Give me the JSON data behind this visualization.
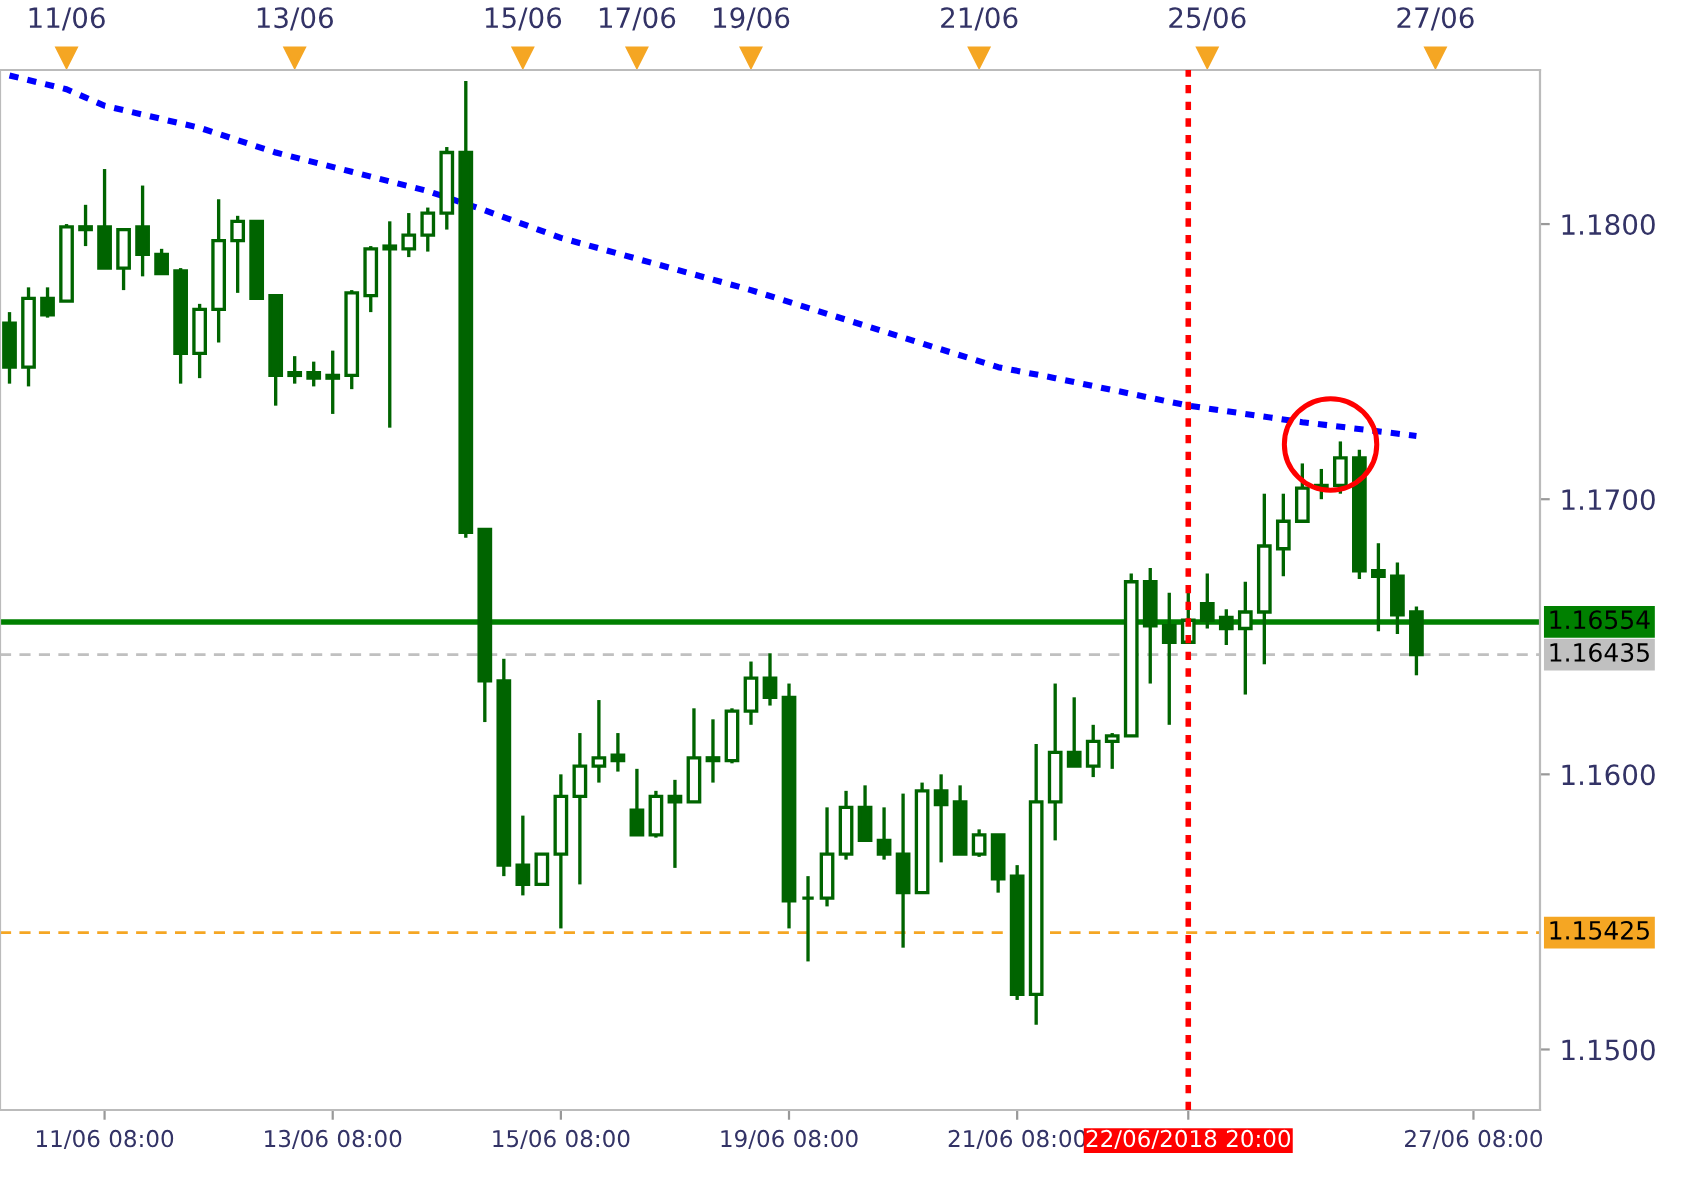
{
  "chart_data": {
    "type": "candlestick",
    "color": "#006400",
    "categories": [
      null,
      null,
      null,
      null,
      null,
      "11/06 08:00",
      null,
      null,
      null,
      null,
      null,
      null,
      null,
      null,
      null,
      null,
      null,
      "13/06 08:00",
      null,
      null,
      null,
      null,
      null,
      null,
      null,
      null,
      null,
      null,
      null,
      "15/06 08:00",
      null,
      null,
      null,
      null,
      null,
      null,
      null,
      null,
      null,
      null,
      null,
      "19/06 08:00",
      null,
      null,
      null,
      null,
      null,
      null,
      null,
      null,
      null,
      null,
      null,
      "21/06 08:00",
      null,
      null,
      null,
      null,
      null,
      null,
      null,
      null,
      "22/06/2018 20:00",
      null,
      null,
      null,
      null,
      null,
      null,
      null,
      null,
      null,
      null,
      null,
      null,
      null,
      null,
      "27/06 08:00",
      null,
      null,
      null
    ],
    "annotations": [
      "11/06",
      "13/06",
      "15/06",
      "17/06",
      "19/06",
      "21/06",
      "25/06",
      "27/06"
    ],
    "ohlc": [
      [
        1.1764,
        1.1768,
        1.1742,
        1.1748
      ],
      [
        1.1748,
        1.1777,
        1.1741,
        1.1773
      ],
      [
        1.1773,
        1.1777,
        1.1766,
        1.1767
      ],
      [
        1.1772,
        1.18,
        1.1772,
        1.1799
      ],
      [
        1.1799,
        1.1807,
        1.1792,
        1.1798
      ],
      [
        1.1799,
        1.182,
        1.1784,
        1.1784
      ],
      [
        1.1784,
        1.1798,
        1.1776,
        1.1798
      ],
      [
        1.1799,
        1.1814,
        1.1781,
        1.1789
      ],
      [
        1.1789,
        1.1791,
        1.1782,
        1.1782
      ],
      [
        1.1783,
        1.1784,
        1.1742,
        1.1753
      ],
      [
        1.1753,
        1.1771,
        1.1744,
        1.1769
      ],
      [
        1.1769,
        1.1809,
        1.1757,
        1.1794
      ],
      [
        1.1794,
        1.1803,
        1.1775,
        1.1801
      ],
      [
        1.1801,
        1.1801,
        1.1773,
        1.1773
      ],
      [
        1.1774,
        1.1774,
        1.1734,
        1.1745
      ],
      [
        1.1746,
        1.1752,
        1.1742,
        1.1745
      ],
      [
        1.1746,
        1.175,
        1.1741,
        1.1744
      ],
      [
        1.1745,
        1.1754,
        1.1731,
        1.1744
      ],
      [
        1.1745,
        1.1776,
        1.174,
        1.1775
      ],
      [
        1.1774,
        1.1792,
        1.1768,
        1.1791
      ],
      [
        1.1792,
        1.1801,
        1.1726,
        1.1791
      ],
      [
        1.1791,
        1.1804,
        1.1788,
        1.1796
      ],
      [
        1.1796,
        1.1806,
        1.179,
        1.1804
      ],
      [
        1.1804,
        1.1828,
        1.1798,
        1.1826
      ],
      [
        1.1826,
        1.1852,
        1.1686,
        1.1688
      ],
      [
        1.1689,
        1.1689,
        1.1619,
        1.1634
      ],
      [
        1.1634,
        1.1642,
        1.1563,
        1.1567
      ],
      [
        1.1567,
        1.1585,
        1.1556,
        1.156
      ],
      [
        1.156,
        1.1571,
        1.156,
        1.1571
      ],
      [
        1.1571,
        1.16,
        1.1544,
        1.1592
      ],
      [
        1.1592,
        1.1615,
        1.156,
        1.1603
      ],
      [
        1.1603,
        1.1627,
        1.1597,
        1.1606
      ],
      [
        1.1607,
        1.1615,
        1.1601,
        1.1605
      ],
      [
        1.1587,
        1.1602,
        1.1578,
        1.1578
      ],
      [
        1.1578,
        1.1594,
        1.1577,
        1.1592
      ],
      [
        1.1592,
        1.1598,
        1.1566,
        1.159
      ],
      [
        1.159,
        1.1624,
        1.159,
        1.1606
      ],
      [
        1.1606,
        1.162,
        1.1597,
        1.1605
      ],
      [
        1.1605,
        1.1624,
        1.1604,
        1.1623
      ],
      [
        1.1623,
        1.1641,
        1.1618,
        1.1635
      ],
      [
        1.1635,
        1.1644,
        1.1625,
        1.1628
      ],
      [
        1.1628,
        1.1633,
        1.1544,
        1.1554
      ],
      [
        1.1555,
        1.1563,
        1.1532,
        1.1555
      ],
      [
        1.1555,
        1.1588,
        1.1552,
        1.1571
      ],
      [
        1.1571,
        1.1594,
        1.1569,
        1.1588
      ],
      [
        1.1588,
        1.1596,
        1.1576,
        1.1576
      ],
      [
        1.1576,
        1.1588,
        1.1569,
        1.1571
      ],
      [
        1.1571,
        1.1593,
        1.1537,
        1.1557
      ],
      [
        1.1557,
        1.1597,
        1.1557,
        1.1594
      ],
      [
        1.1594,
        1.16,
        1.1568,
        1.1589
      ],
      [
        1.159,
        1.1596,
        1.1571,
        1.1571
      ],
      [
        1.1571,
        1.158,
        1.157,
        1.1578
      ],
      [
        1.1578,
        1.1578,
        1.1557,
        1.1562
      ],
      [
        1.1563,
        1.1567,
        1.1518,
        1.152
      ],
      [
        1.152,
        1.1611,
        1.1509,
        1.159
      ],
      [
        1.159,
        1.1633,
        1.1576,
        1.1608
      ],
      [
        1.1608,
        1.1628,
        1.1603,
        1.1603
      ],
      [
        1.1603,
        1.1618,
        1.1599,
        1.1612
      ],
      [
        1.1612,
        1.1615,
        1.1602,
        1.1614
      ],
      [
        1.1614,
        1.1673,
        1.1614,
        1.167
      ],
      [
        1.167,
        1.1675,
        1.1633,
        1.1654
      ],
      [
        1.1654,
        1.1666,
        1.1618,
        1.1648
      ],
      [
        1.1648,
        1.1667,
        1.1648,
        1.1656
      ],
      [
        1.1662,
        1.1673,
        1.1653,
        1.1656
      ],
      [
        1.1657,
        1.166,
        1.1647,
        1.1653
      ],
      [
        1.1653,
        1.167,
        1.1629,
        1.1659
      ],
      [
        1.1659,
        1.1702,
        1.164,
        1.1683
      ],
      [
        1.1682,
        1.1702,
        1.1672,
        1.1692
      ],
      [
        1.1692,
        1.1713,
        1.1692,
        1.1704
      ],
      [
        1.1704,
        1.1711,
        1.17,
        1.1705
      ],
      [
        1.1705,
        1.1721,
        1.1702,
        1.1715
      ],
      [
        1.1715,
        1.1718,
        1.1671,
        1.1674
      ],
      [
        1.1674,
        1.1684,
        1.1652,
        1.1672
      ],
      [
        1.1672,
        1.1677,
        1.1651,
        1.1658
      ],
      [
        1.1659,
        1.1661,
        1.1636,
        1.16435
      ],
      null,
      null,
      null,
      null,
      null,
      null
    ],
    "series": [
      {
        "type": "line",
        "color": "#0000ff",
        "line_style": "dotted",
        "values": [
          1.1854,
          null,
          null,
          1.1849,
          null,
          1.1843,
          null,
          null,
          null,
          null,
          1.1835,
          null,
          null,
          null,
          1.1826,
          null,
          null,
          null,
          1.1819,
          null,
          null,
          null,
          1.1812,
          null,
          null,
          1.1805,
          null,
          null,
          null,
          1.1795,
          null,
          null,
          null,
          null,
          null,
          null,
          null,
          null,
          null,
          1.1776,
          null,
          null,
          null,
          null,
          null,
          null,
          null,
          null,
          null,
          null,
          null,
          null,
          1.1748,
          null,
          null,
          1.1744,
          null,
          null,
          null,
          null,
          null,
          null,
          1.1734,
          null,
          null,
          null,
          null,
          null,
          1.1728,
          null,
          null,
          null,
          null,
          null,
          1.1723,
          null,
          null,
          null,
          null,
          null,
          null
        ]
      }
    ],
    "ylim": [
      1.1478,
      1.1856
    ],
    "yticks": [
      {
        "value": 1.15,
        "label": "1.1500"
      },
      {
        "value": 1.16,
        "label": "1.1600"
      },
      {
        "value": 1.17,
        "label": "1.1700"
      },
      {
        "value": 1.18,
        "label": "1.1800"
      }
    ],
    "ref_lines": [
      {
        "axis": "y",
        "value": 1.16554,
        "label": "1.16554",
        "color": "#008000",
        "line_style": "solid"
      },
      {
        "axis": "y",
        "value": 1.16435,
        "label": "1.16435",
        "color": "#c0c0c0",
        "line_style": "dashed"
      },
      {
        "axis": "y",
        "value": 1.15425,
        "label": "1.15425",
        "color": "#f5a623",
        "line_style": "dashed"
      },
      {
        "axis": "x",
        "value": "22/06/2018 20:00",
        "color": "#ff0000",
        "line_style": "dotted"
      }
    ],
    "grid": false,
    "legend": false
  }
}
